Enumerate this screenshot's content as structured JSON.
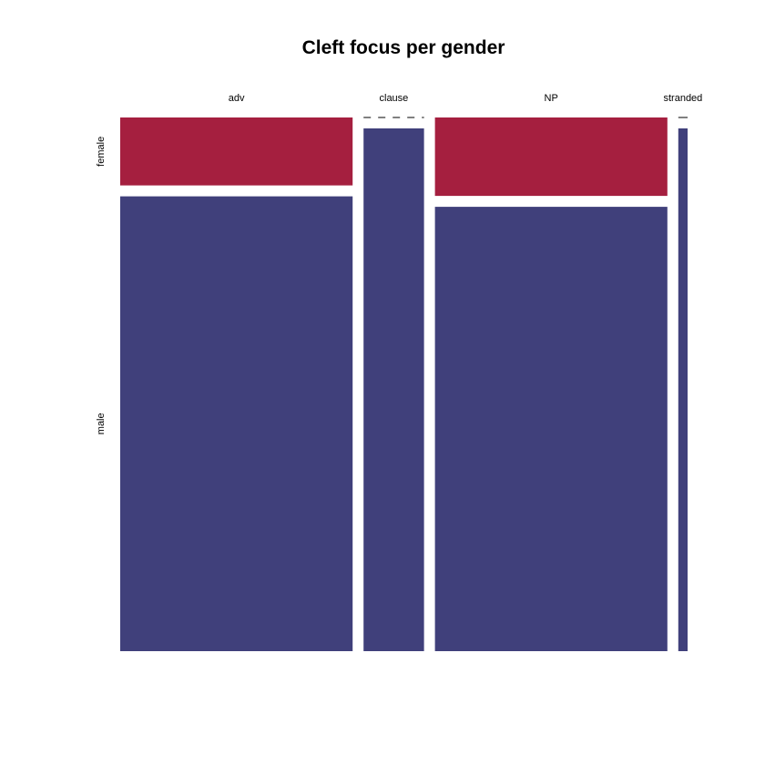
{
  "chart_data": {
    "type": "mosaic",
    "title": "Cleft focus per gender",
    "categories": [
      "adv",
      "clause",
      "NP",
      "stranded"
    ],
    "groups": [
      "female",
      "male"
    ],
    "series": [
      {
        "name": "female",
        "values": [
          13,
          0,
          15,
          0
        ]
      },
      {
        "name": "male",
        "values": [
          87,
          26,
          85,
          4
        ]
      }
    ],
    "colors": {
      "female": "#a51f3f",
      "male": "#40407b"
    }
  }
}
